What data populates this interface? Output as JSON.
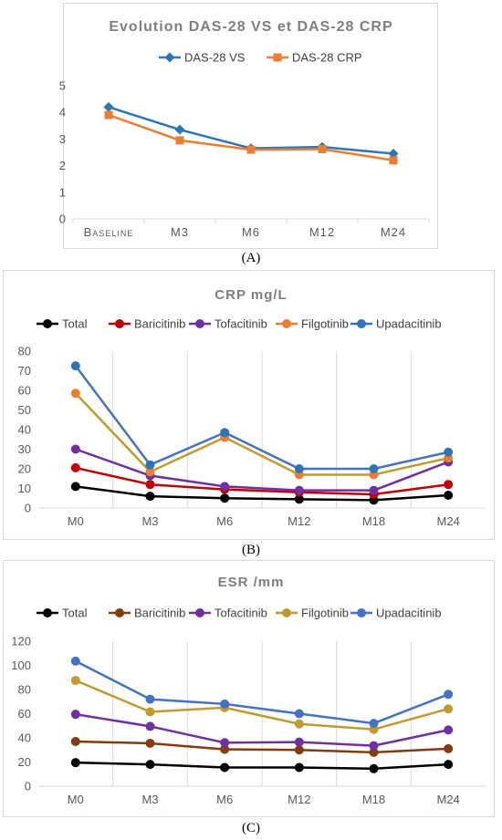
{
  "charts": {
    "A": {
      "caption": "(A)",
      "chart_data": {
        "type": "line",
        "title": "Evolution DAS-28 VS et DAS-28 CRP",
        "categories": [
          "Baseline",
          "M3",
          "M6",
          "M12",
          "M24"
        ],
        "ylim": [
          0,
          5
        ],
        "yticks": [
          0,
          1,
          2,
          3,
          4,
          5
        ],
        "grid": false,
        "legend": "top",
        "series": [
          {
            "name": "DAS-28 VS",
            "color": "#2e75b6",
            "marker": "diamond",
            "values": [
              4.2,
              3.35,
              2.65,
              2.7,
              2.45
            ]
          },
          {
            "name": "DAS-28 CRP",
            "color": "#ed7d31",
            "marker": "square",
            "values": [
              3.9,
              2.95,
              2.6,
              2.62,
              2.2
            ]
          }
        ]
      }
    },
    "B": {
      "caption": "(B)",
      "chart_data": {
        "type": "line",
        "title": "CRP mg/L",
        "categories": [
          "M0",
          "M3",
          "M6",
          "M12",
          "M18",
          "M24"
        ],
        "ylim": [
          0,
          80
        ],
        "yticks": [
          0,
          10,
          20,
          30,
          40,
          50,
          60,
          70,
          80
        ],
        "grid": true,
        "legend": "top",
        "series": [
          {
            "name": "Total",
            "color": "#000000",
            "values": [
              11,
              6,
              5,
              4.5,
              4,
              6.5
            ]
          },
          {
            "name": "Baricitinib",
            "color": "#c00000",
            "values": [
              20.5,
              12,
              9.5,
              8,
              7,
              12
            ]
          },
          {
            "name": "Tofacitinib",
            "color": "#7030a0",
            "values": [
              30,
              16.5,
              11,
              9,
              9,
              23.5
            ]
          },
          {
            "name": "Filgotinib",
            "color": "#ed7d31",
            "line_color": "#bf9b30",
            "values": [
              58.5,
              18.5,
              36,
              17,
              17,
              25.5
            ]
          },
          {
            "name": "Upadacitinib",
            "color": "#2e75b6",
            "line_color": "#4472c4",
            "values": [
              72.5,
              22,
              38.5,
              20,
              20,
              28.5
            ]
          }
        ]
      }
    },
    "C": {
      "caption": "(C)",
      "chart_data": {
        "type": "line",
        "title": "ESR /mm",
        "categories": [
          "M0",
          "M3",
          "M6",
          "M12",
          "M18",
          "M24"
        ],
        "ylim": [
          0,
          120
        ],
        "yticks": [
          0,
          20,
          40,
          60,
          80,
          100,
          120
        ],
        "grid": true,
        "legend": "top",
        "series": [
          {
            "name": "Total",
            "color": "#000000",
            "values": [
              19.5,
              18,
              15.5,
              15.5,
              14.5,
              18
            ]
          },
          {
            "name": "Baricitinib",
            "color": "#843c0c",
            "values": [
              37,
              35.5,
              30.5,
              30,
              28,
              31
            ]
          },
          {
            "name": "Tofacitinib",
            "color": "#7030a0",
            "values": [
              59.5,
              49.5,
              36,
              36.5,
              33.5,
              46.5
            ]
          },
          {
            "name": "Filgotinib",
            "color": "#bf9b30",
            "values": [
              87.5,
              61.5,
              65,
              51.5,
              47,
              64
            ]
          },
          {
            "name": "Upadacitinib",
            "color": "#4472c4",
            "values": [
              103.5,
              72,
              68,
              60,
              52,
              76
            ]
          }
        ]
      }
    }
  }
}
